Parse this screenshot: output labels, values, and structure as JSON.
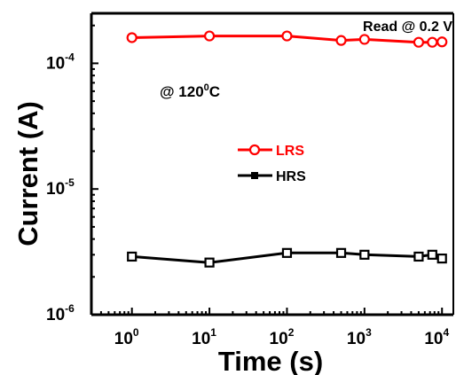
{
  "chart_data": {
    "type": "line",
    "x_scale": "log",
    "y_scale": "log",
    "xlim": [
      0.3,
      14000
    ],
    "ylim": [
      1e-06,
      0.00025
    ],
    "xlabel": "Time (s)",
    "ylabel": "Current (A)",
    "x_ticks": [
      {
        "value": 1,
        "base": "10",
        "exp": "0"
      },
      {
        "value": 10,
        "base": "10",
        "exp": "1"
      },
      {
        "value": 100,
        "base": "10",
        "exp": "2"
      },
      {
        "value": 1000,
        "base": "10",
        "exp": "3"
      },
      {
        "value": 10000,
        "base": "10",
        "exp": "4"
      }
    ],
    "y_ticks": [
      {
        "value": 1e-06,
        "base": "10",
        "exp": "-6"
      },
      {
        "value": 1e-05,
        "base": "10",
        "exp": "-5"
      },
      {
        "value": 0.0001,
        "base": "10",
        "exp": "-4"
      }
    ],
    "annotations": {
      "read_voltage": "Read @ 0.2 V",
      "temperature_prefix": "@ 120",
      "temperature_degree": "0",
      "temperature_unit": "C"
    },
    "legend_position": "center",
    "series": [
      {
        "name": "LRS",
        "color": "#ff0000",
        "marker": "open-circle",
        "x": [
          1,
          10,
          100,
          500,
          1000,
          5000,
          7500,
          10000
        ],
        "y": [
          0.00016,
          0.000165,
          0.000165,
          0.000152,
          0.000155,
          0.000147,
          0.000147,
          0.000148
        ]
      },
      {
        "name": "HRS",
        "color": "#000000",
        "marker": "open-square",
        "x": [
          1,
          10,
          100,
          500,
          1000,
          5000,
          7500,
          10000
        ],
        "y": [
          2.9e-06,
          2.6e-06,
          3.1e-06,
          3.1e-06,
          3e-06,
          2.9e-06,
          3e-06,
          2.8e-06
        ]
      }
    ]
  }
}
